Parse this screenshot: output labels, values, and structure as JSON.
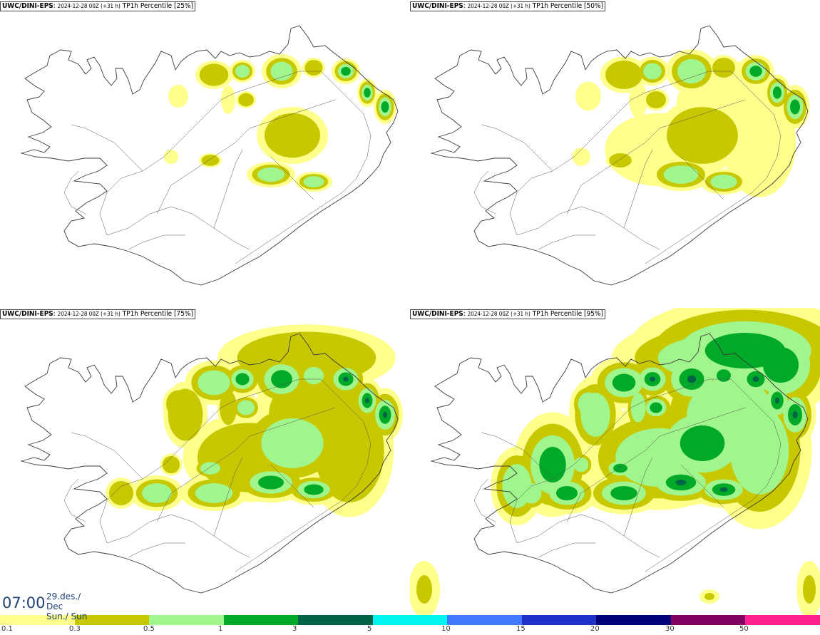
{
  "panels": [
    {
      "model": "UWC/DINI-EPS",
      "run": "2024-12-28 00Z (+31 h)",
      "field": "TP1h Percentile [25%]"
    },
    {
      "model": "UWC/DINI-EPS",
      "run": "2024-12-28 00Z (+31 h)",
      "field": "TP1h Percentile [50%]"
    },
    {
      "model": "UWC/DINI-EPS",
      "run": "2024-12-28 00Z (+31 h)",
      "field": "TP1h Percentile [75%]"
    },
    {
      "model": "UWC/DINI-EPS",
      "run": "2024-12-28 00Z (+31 h)",
      "field": "TP1h Percentile [95%]"
    }
  ],
  "valid_time": {
    "time": "07:00",
    "date_line": "29.des./ Dec",
    "day_line": "Sun./ Sun"
  },
  "colorbar": {
    "labels": [
      "0.1",
      "0.3",
      "0.5",
      "1",
      "3",
      "5",
      "10",
      "15",
      "20",
      "30",
      "50"
    ],
    "colors": [
      "#ffff8c",
      "#c8c800",
      "#a0f58c",
      "#00aa28",
      "#006446",
      "#00f5f0",
      "#4178ff",
      "#1e32c8",
      "#000078",
      "#820064",
      "#ff1e8c",
      "#ff0000"
    ]
  }
}
